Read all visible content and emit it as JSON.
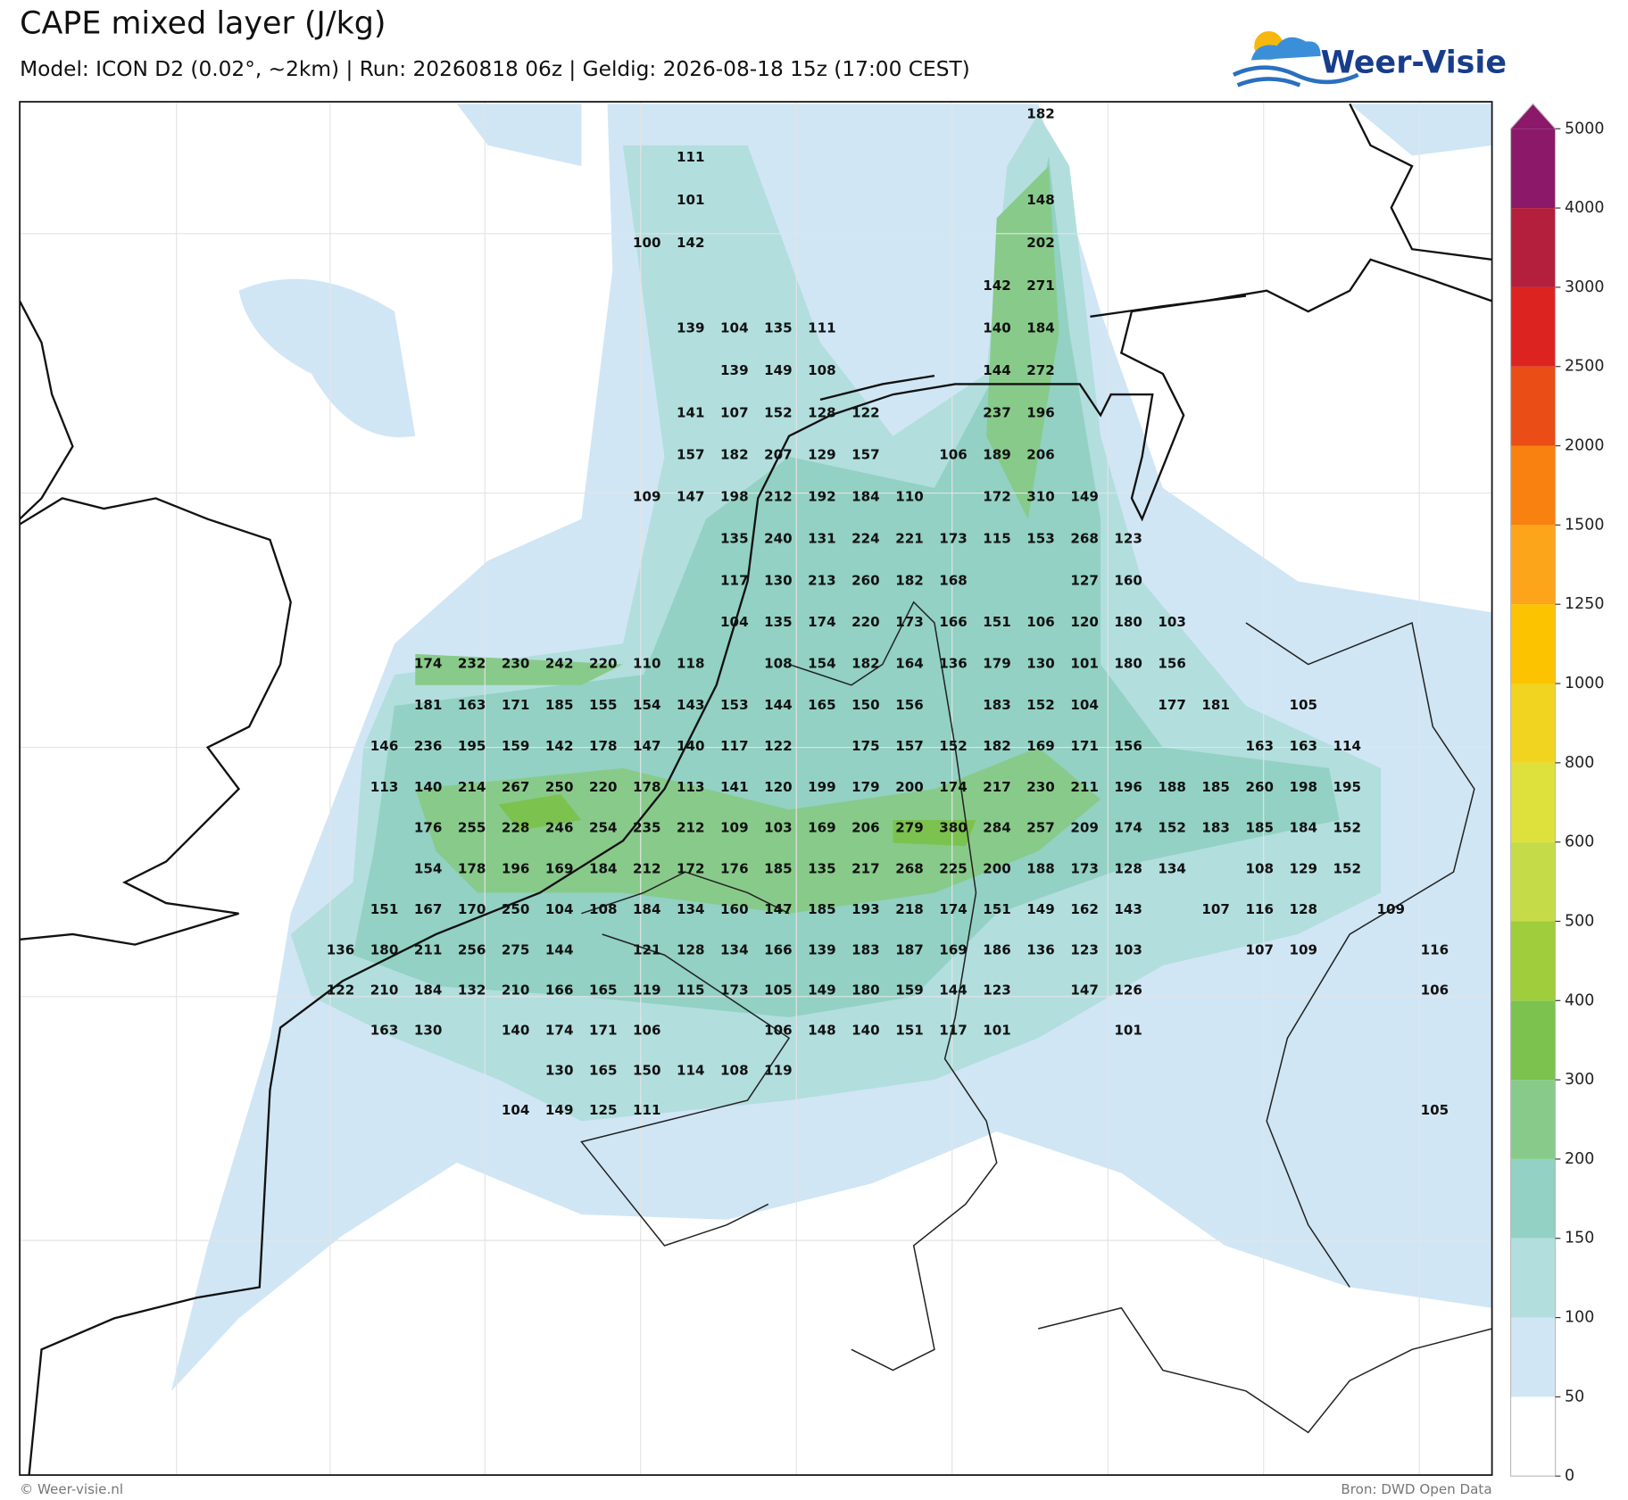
{
  "header": {
    "title": "CAPE mixed layer (J/kg)",
    "subtitle": "Model: ICON D2 (0.02°, ~2km)  |  Run: 20260818 06z  |  Geldig: 2026-08-18 15z (17:00 CEST)"
  },
  "logo": {
    "text": "Weer-Visie"
  },
  "colorbar": {
    "ticks": [
      0,
      50,
      100,
      150,
      200,
      300,
      400,
      500,
      600,
      800,
      1000,
      1250,
      1500,
      2000,
      2500,
      3000,
      4000,
      5000
    ],
    "colors": [
      "#ffffff",
      "#d0e6f5",
      "#b2dede",
      "#92d1c3",
      "#88ca8a",
      "#7cc24f",
      "#9fcd3b",
      "#c5dc48",
      "#dee13b",
      "#f1d41f",
      "#fbc300",
      "#fca51a",
      "#f9810f",
      "#ea4d16",
      "#dc2320",
      "#b41f3d",
      "#8b1868"
    ]
  },
  "map": {
    "rows": [
      [
        null,
        null,
        null,
        null,
        null,
        null,
        null,
        null,
        null,
        null,
        null,
        null,
        null,
        null,
        null,
        null,
        182,
        null,
        null,
        null,
        null,
        null,
        null,
        null,
        null,
        null
      ],
      [
        null,
        null,
        null,
        null,
        null,
        null,
        null,
        null,
        111,
        null,
        null,
        null,
        null,
        null,
        null,
        null,
        null,
        null,
        null,
        null,
        null,
        null,
        null,
        null,
        null,
        null
      ],
      [
        null,
        null,
        null,
        null,
        null,
        null,
        null,
        null,
        101,
        null,
        null,
        null,
        null,
        null,
        null,
        null,
        148,
        null,
        null,
        null,
        null,
        null,
        null,
        null,
        null,
        null
      ],
      [
        null,
        null,
        null,
        null,
        null,
        null,
        null,
        100,
        142,
        null,
        null,
        null,
        null,
        null,
        null,
        null,
        202,
        null,
        null,
        null,
        null,
        null,
        null,
        null,
        null,
        null
      ],
      [
        null,
        null,
        null,
        null,
        null,
        null,
        null,
        null,
        null,
        null,
        null,
        null,
        null,
        null,
        null,
        142,
        271,
        null,
        null,
        null,
        null,
        null,
        null,
        null,
        null,
        null
      ],
      [
        null,
        null,
        null,
        null,
        null,
        null,
        null,
        null,
        139,
        104,
        135,
        111,
        null,
        null,
        null,
        140,
        184,
        null,
        null,
        null,
        null,
        null,
        null,
        null,
        null,
        null
      ],
      [
        null,
        null,
        null,
        null,
        null,
        null,
        null,
        null,
        null,
        139,
        149,
        108,
        null,
        null,
        null,
        144,
        272,
        null,
        null,
        null,
        null,
        null,
        null,
        null,
        null,
        null
      ],
      [
        null,
        null,
        null,
        null,
        null,
        null,
        null,
        null,
        141,
        107,
        152,
        128,
        122,
        null,
        null,
        237,
        196,
        null,
        null,
        null,
        null,
        null,
        null,
        null,
        null,
        null
      ],
      [
        null,
        null,
        null,
        null,
        null,
        null,
        null,
        null,
        157,
        182,
        207,
        129,
        157,
        null,
        106,
        189,
        206,
        null,
        null,
        null,
        null,
        null,
        null,
        null,
        null,
        null
      ],
      [
        null,
        null,
        null,
        null,
        null,
        null,
        null,
        109,
        147,
        198,
        212,
        192,
        184,
        110,
        null,
        172,
        310,
        149,
        null,
        null,
        null,
        null,
        null,
        null,
        null,
        null
      ],
      [
        null,
        null,
        null,
        null,
        null,
        null,
        null,
        null,
        null,
        135,
        240,
        131,
        224,
        221,
        173,
        115,
        153,
        268,
        123,
        null,
        null,
        null,
        null,
        null,
        null,
        null
      ],
      [
        null,
        null,
        null,
        null,
        null,
        null,
        null,
        null,
        null,
        117,
        130,
        213,
        260,
        182,
        168,
        null,
        null,
        127,
        160,
        null,
        null,
        null,
        null,
        null,
        null,
        null
      ],
      [
        null,
        null,
        null,
        null,
        null,
        null,
        null,
        null,
        null,
        104,
        135,
        174,
        220,
        173,
        166,
        151,
        106,
        120,
        180,
        103,
        null,
        null,
        null,
        null,
        null,
        null
      ],
      [
        null,
        null,
        174,
        232,
        230,
        242,
        220,
        110,
        118,
        null,
        108,
        154,
        182,
        164,
        136,
        179,
        130,
        101,
        180,
        156,
        null,
        null,
        null,
        null,
        null,
        null
      ],
      [
        null,
        null,
        181,
        163,
        171,
        185,
        155,
        154,
        143,
        153,
        144,
        165,
        150,
        156,
        null,
        183,
        152,
        104,
        null,
        177,
        181,
        null,
        105,
        null,
        null,
        null
      ],
      [
        null,
        146,
        236,
        195,
        159,
        142,
        178,
        147,
        140,
        117,
        122,
        null,
        175,
        157,
        152,
        182,
        169,
        171,
        156,
        null,
        null,
        163,
        163,
        114,
        null,
        null
      ],
      [
        null,
        113,
        140,
        214,
        267,
        250,
        220,
        178,
        113,
        141,
        120,
        199,
        179,
        200,
        174,
        217,
        230,
        211,
        196,
        188,
        185,
        260,
        198,
        195,
        null,
        null
      ],
      [
        null,
        null,
        176,
        255,
        228,
        246,
        254,
        235,
        212,
        109,
        103,
        169,
        206,
        279,
        380,
        284,
        257,
        209,
        174,
        152,
        183,
        185,
        184,
        152,
        null,
        null
      ],
      [
        null,
        null,
        154,
        178,
        196,
        169,
        184,
        212,
        172,
        176,
        185,
        135,
        217,
        268,
        225,
        200,
        188,
        173,
        128,
        134,
        null,
        108,
        129,
        152,
        null,
        null
      ],
      [
        null,
        151,
        167,
        170,
        250,
        104,
        108,
        184,
        134,
        160,
        147,
        185,
        193,
        218,
        174,
        151,
        149,
        162,
        143,
        null,
        107,
        116,
        128,
        null,
        109,
        null
      ],
      [
        136,
        180,
        211,
        256,
        275,
        144,
        null,
        121,
        128,
        134,
        166,
        139,
        183,
        187,
        169,
        186,
        136,
        123,
        103,
        null,
        null,
        107,
        109,
        null,
        null,
        116
      ],
      [
        122,
        210,
        184,
        132,
        210,
        166,
        165,
        119,
        115,
        173,
        105,
        149,
        180,
        159,
        144,
        123,
        null,
        147,
        126,
        null,
        null,
        null,
        null,
        null,
        null,
        106
      ],
      [
        null,
        163,
        130,
        null,
        140,
        174,
        171,
        106,
        null,
        null,
        106,
        148,
        140,
        151,
        117,
        101,
        null,
        null,
        101,
        null,
        null,
        null,
        null,
        null,
        null,
        null
      ],
      [
        null,
        null,
        null,
        null,
        null,
        130,
        165,
        150,
        114,
        108,
        119,
        null,
        null,
        null,
        null,
        null,
        null,
        null,
        null,
        null,
        null,
        null,
        null,
        null,
        null,
        null
      ],
      [
        null,
        null,
        null,
        null,
        104,
        149,
        125,
        111,
        null,
        null,
        null,
        null,
        null,
        null,
        null,
        null,
        null,
        null,
        null,
        null,
        null,
        null,
        null,
        null,
        null,
        105
      ]
    ]
  },
  "footer": {
    "left": "© Weer-visie.nl",
    "right": "Bron: DWD Open Data"
  }
}
